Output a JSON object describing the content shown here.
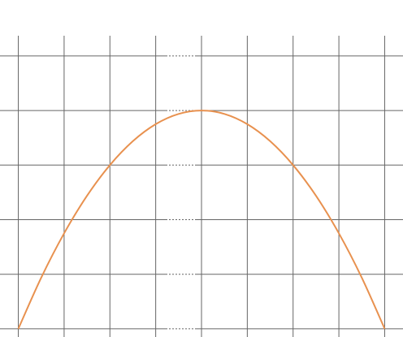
{
  "chart_data": {
    "type": "line",
    "title": "",
    "xlabel": "",
    "ylabel": "",
    "grid": true,
    "legend": "none",
    "x_ticks": [
      -4,
      -3,
      -2,
      -1,
      0,
      1,
      2,
      3,
      4
    ],
    "y_ticks": [
      0,
      2,
      4,
      6,
      8,
      10
    ],
    "xlim": [
      -4.4,
      4.4
    ],
    "ylim": [
      -0.3,
      12.05
    ],
    "series": [
      {
        "x": [
          -4,
          -3.5,
          -3,
          -2.5,
          -2,
          -1.5,
          -1,
          -0.5,
          0,
          0.5,
          1,
          1.5,
          2,
          2.5,
          3,
          3.5,
          4
        ],
        "y": [
          0,
          1.875,
          3.5,
          4.875,
          6,
          6.875,
          7.5,
          7.875,
          8,
          7.875,
          7.5,
          6.875,
          6,
          4.875,
          3.5,
          1.875,
          0
        ],
        "color": "#e8914f"
      }
    ],
    "colors": {
      "curve": "#e8914f",
      "grid": "#666666",
      "background": "#ffffff"
    }
  }
}
